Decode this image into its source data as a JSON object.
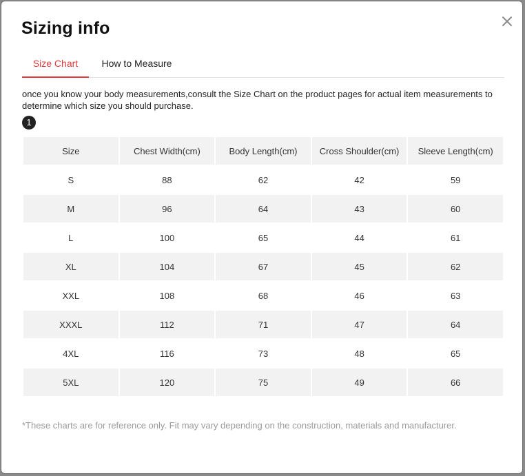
{
  "dialog": {
    "title": "Sizing info",
    "close_icon": "close-icon"
  },
  "tabs": [
    {
      "label": "Size Chart",
      "active": true
    },
    {
      "label": "How to Measure",
      "active": false
    }
  ],
  "accent_color": "#e4393c",
  "intro_text": "once you know your body measurements,consult the Size Chart on the product pages for actual item measurements to determine which size you should purchase.",
  "marker_label": "1",
  "size_table": {
    "headers": [
      "Size",
      "Chest Width(cm)",
      "Body Length(cm)",
      "Cross Shoulder(cm)",
      "Sleeve Length(cm)"
    ],
    "rows": [
      [
        "S",
        "88",
        "62",
        "42",
        "59"
      ],
      [
        "M",
        "96",
        "64",
        "43",
        "60"
      ],
      [
        "L",
        "100",
        "65",
        "44",
        "61"
      ],
      [
        "XL",
        "104",
        "67",
        "45",
        "62"
      ],
      [
        "XXL",
        "108",
        "68",
        "46",
        "63"
      ],
      [
        "XXXL",
        "112",
        "71",
        "47",
        "64"
      ],
      [
        "4XL",
        "116",
        "73",
        "48",
        "65"
      ],
      [
        "5XL",
        "120",
        "75",
        "49",
        "66"
      ]
    ]
  },
  "footnote": "*These charts are for reference only. Fit may vary depending on the construction, materials and manufacturer."
}
